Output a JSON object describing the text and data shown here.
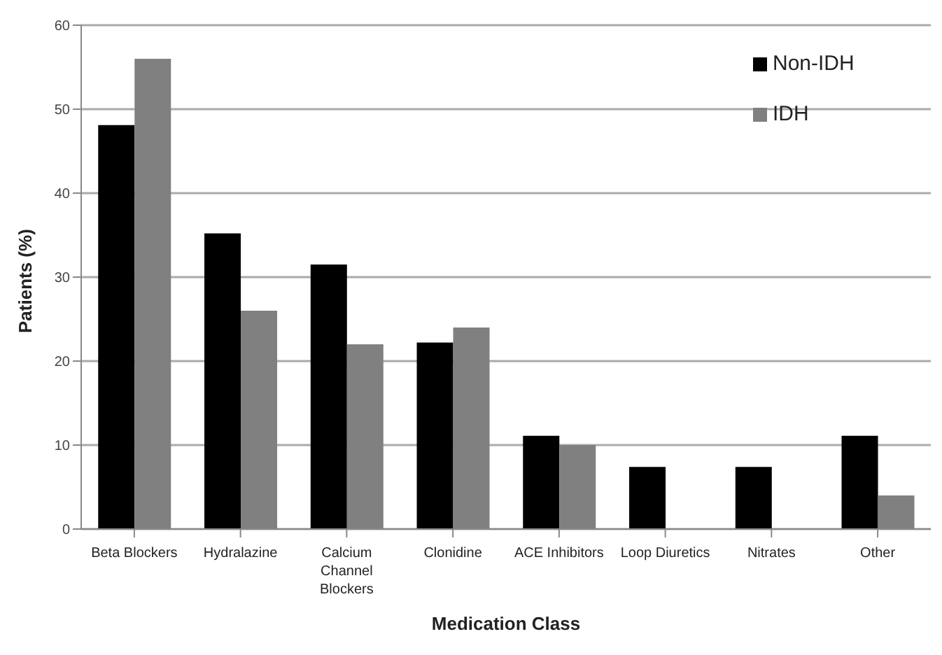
{
  "chart_data": {
    "type": "bar",
    "xlabel": "Medication Class",
    "ylabel": "Patients (%)",
    "categories": [
      "Beta Blockers",
      "Hydralazine",
      "Calcium Channel Blockers",
      "Clonidine",
      "ACE Inhibitors",
      "Loop Diuretics",
      "Nitrates",
      "Other"
    ],
    "series": [
      {
        "name": "Non-IDH",
        "color": "#000000",
        "values": [
          48.1,
          35.2,
          31.5,
          22.2,
          11.1,
          7.4,
          7.4,
          11.1
        ]
      },
      {
        "name": "IDH",
        "color": "#808080",
        "values": [
          56,
          26,
          22,
          24,
          10,
          0,
          0,
          4
        ]
      }
    ],
    "ylim": [
      0,
      60
    ],
    "yticks": [
      0,
      10,
      20,
      30,
      40,
      50,
      60
    ],
    "grid": "y",
    "legend": "top right"
  }
}
